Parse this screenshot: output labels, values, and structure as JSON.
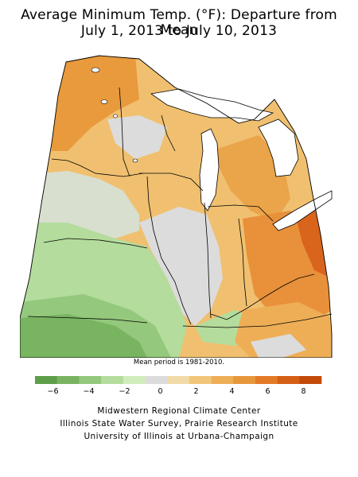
{
  "title": {
    "line1": "Average Minimum Temp. (°F): Departure from Mean",
    "line2": "July 1, 2013 to July 10, 2013"
  },
  "map": {
    "region": "Midwestern United States",
    "units": "°F departure from mean",
    "region_fills": [
      {
        "region": "northern-minnesota",
        "category": "+4 to +6",
        "color": "#e89a3c"
      },
      {
        "region": "central-minnesota",
        "category": "+2 to +4",
        "color": "#f0c070"
      },
      {
        "region": "southwest-minnesota",
        "category": "-2 to 0",
        "color": "#cfe8b8"
      },
      {
        "region": "iowa",
        "category": "-2 to 0",
        "color": "#c6e5ad"
      },
      {
        "region": "missouri",
        "category": "-4 to -2",
        "color": "#9ccf85"
      },
      {
        "region": "wisconsin",
        "category": "+2 to +4",
        "color": "#f0c070"
      },
      {
        "region": "upper-peninsula-michigan",
        "category": "+2 to +4",
        "color": "#f2c67a"
      },
      {
        "region": "lower-michigan",
        "category": "+4 to +6",
        "color": "#eaa44a"
      },
      {
        "region": "illinois",
        "category": "-1 to +1",
        "color": "#dcdcdc"
      },
      {
        "region": "indiana",
        "category": "+2 to +4",
        "color": "#f0c070"
      },
      {
        "region": "ohio",
        "category": "+4 to +6",
        "color": "#e8903a"
      },
      {
        "region": "eastern-ohio",
        "category": "+6 to +8",
        "color": "#d9641c"
      },
      {
        "region": "kentucky",
        "category": "+2 to +4",
        "color": "#f2c67a"
      },
      {
        "region": "southeast-missouri",
        "category": "-1 to +1",
        "color": "#dcdcdc"
      }
    ]
  },
  "note": "Mean period is 1981-2010.",
  "legend": {
    "colors": [
      "#5e9e4a",
      "#79b461",
      "#94c87c",
      "#b4dc9c",
      "#d0ecbc",
      "#dcdcdc",
      "#f2dba6",
      "#f2c67a",
      "#eeae56",
      "#e8963c",
      "#e37a28",
      "#d55f14",
      "#c44a0a"
    ],
    "ticks": [
      "−6",
      "−4",
      "−2",
      "0",
      "2",
      "4",
      "6",
      "8"
    ],
    "tick_values": [
      -6,
      -4,
      -2,
      0,
      2,
      4,
      6,
      8
    ],
    "range": [
      -7,
      9
    ]
  },
  "credits": [
    "Midwestern Regional Climate Center",
    "Illinois State Water Survey, Prairie Research Institute",
    "University of Illinois at Urbana-Champaign"
  ]
}
